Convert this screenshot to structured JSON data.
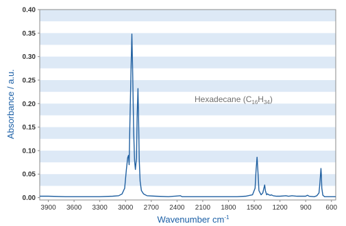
{
  "chart_data": {
    "type": "line",
    "title": "",
    "xlabel": "Wavenumber cm",
    "xlabel_superscript": "-1",
    "ylabel": "Absorbance / a.u.",
    "annotation": {
      "text": "Hexadecane (C",
      "sub1": "16",
      "mid": "H",
      "sub2": "34",
      "end": ")"
    },
    "xlim": [
      4000,
      550
    ],
    "x_reversed": true,
    "ylim": [
      -0.005,
      0.4
    ],
    "x_ticks": [
      3900,
      3600,
      3300,
      3000,
      2700,
      2400,
      2100,
      1800,
      1500,
      1200,
      900,
      600
    ],
    "y_ticks": [
      0.0,
      0.05,
      0.1,
      0.15,
      0.2,
      0.25,
      0.3,
      0.35,
      0.4
    ],
    "y_tick_labels": [
      "0.00",
      "0.05",
      "0.10",
      "0.15",
      "0.20",
      "0.25",
      "0.30",
      "0.35",
      "0.40"
    ],
    "background_bands": "alternating light blue horizontal bands",
    "colors": {
      "line": "#1f5fa0",
      "band": "#dde9f6",
      "axis_title": "#1b5fa6"
    },
    "series": [
      {
        "points": [
          [
            4000,
            0.003
          ],
          [
            3900,
            0.003
          ],
          [
            3700,
            0.002
          ],
          [
            3500,
            0.002
          ],
          [
            3300,
            0.002
          ],
          [
            3150,
            0.003
          ],
          [
            3080,
            0.004
          ],
          [
            3040,
            0.008
          ],
          [
            3010,
            0.02
          ],
          [
            2990,
            0.06
          ],
          [
            2975,
            0.085
          ],
          [
            2965,
            0.09
          ],
          [
            2958,
            0.07
          ],
          [
            2950,
            0.15
          ],
          [
            2935,
            0.28
          ],
          [
            2926,
            0.348
          ],
          [
            2918,
            0.28
          ],
          [
            2905,
            0.14
          ],
          [
            2895,
            0.08
          ],
          [
            2885,
            0.06
          ],
          [
            2872,
            0.085
          ],
          [
            2865,
            0.17
          ],
          [
            2855,
            0.232
          ],
          [
            2848,
            0.17
          ],
          [
            2840,
            0.08
          ],
          [
            2830,
            0.035
          ],
          [
            2815,
            0.015
          ],
          [
            2790,
            0.008
          ],
          [
            2750,
            0.004
          ],
          [
            2650,
            0.003
          ],
          [
            2500,
            0.002
          ],
          [
            2360,
            0.004
          ],
          [
            2340,
            0.002
          ],
          [
            2200,
            0.002
          ],
          [
            2000,
            0.002
          ],
          [
            1800,
            0.002
          ],
          [
            1700,
            0.002
          ],
          [
            1600,
            0.003
          ],
          [
            1520,
            0.006
          ],
          [
            1490,
            0.02
          ],
          [
            1478,
            0.06
          ],
          [
            1467,
            0.086
          ],
          [
            1458,
            0.06
          ],
          [
            1445,
            0.015
          ],
          [
            1420,
            0.006
          ],
          [
            1400,
            0.01
          ],
          [
            1390,
            0.018
          ],
          [
            1378,
            0.027
          ],
          [
            1370,
            0.015
          ],
          [
            1355,
            0.006
          ],
          [
            1345,
            0.008
          ],
          [
            1330,
            0.006
          ],
          [
            1310,
            0.005
          ],
          [
            1300,
            0.006
          ],
          [
            1280,
            0.004
          ],
          [
            1240,
            0.003
          ],
          [
            1200,
            0.003
          ],
          [
            1130,
            0.004
          ],
          [
            1100,
            0.003
          ],
          [
            1060,
            0.004
          ],
          [
            1000,
            0.003
          ],
          [
            950,
            0.003
          ],
          [
            900,
            0.003
          ],
          [
            880,
            0.005
          ],
          [
            860,
            0.003
          ],
          [
            800,
            0.002
          ],
          [
            770,
            0.004
          ],
          [
            745,
            0.01
          ],
          [
            735,
            0.03
          ],
          [
            727,
            0.05
          ],
          [
            722,
            0.062
          ],
          [
            718,
            0.05
          ],
          [
            712,
            0.02
          ],
          [
            700,
            0.005
          ],
          [
            680,
            0.002
          ],
          [
            640,
            0.002
          ],
          [
            600,
            0.002
          ],
          [
            570,
            0.002
          ],
          [
            550,
            0.002
          ]
        ]
      }
    ]
  }
}
